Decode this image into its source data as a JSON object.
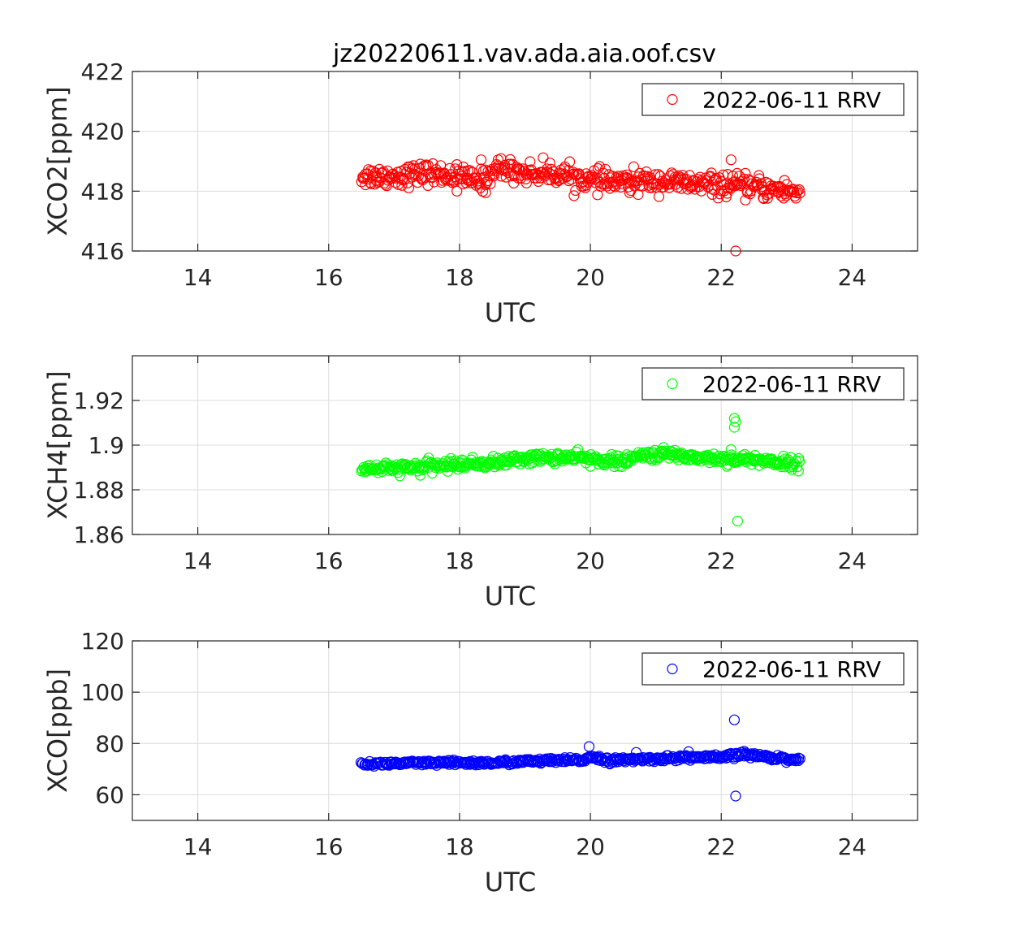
{
  "figure": {
    "title": "jz20220611.vav.ada.aia.oof.csv"
  },
  "chart_data": [
    {
      "type": "scatter",
      "name": "xco2",
      "ylabel": "XCO2[ppm]",
      "xlabel": "UTC",
      "xlim": [
        13,
        25
      ],
      "ylim": [
        416,
        422
      ],
      "xticks": [
        "14",
        "16",
        "18",
        "20",
        "22",
        "24"
      ],
      "yticks": [
        "416",
        "418",
        "420",
        "422"
      ],
      "grid": true,
      "legend_position": "top-right",
      "series": [
        {
          "name": "2022-06-11 RRV",
          "color": "#ff0000",
          "marker": "open-circle",
          "trend": [
            [
              16.5,
              418.5
            ],
            [
              17.0,
              418.5
            ],
            [
              17.5,
              418.6
            ],
            [
              18.0,
              418.5
            ],
            [
              18.3,
              418.3
            ],
            [
              18.6,
              418.8
            ],
            [
              19.0,
              418.6
            ],
            [
              19.5,
              418.6
            ],
            [
              20.0,
              418.35
            ],
            [
              20.5,
              418.3
            ],
            [
              21.0,
              418.35
            ],
            [
              21.5,
              418.25
            ],
            [
              22.0,
              418.2
            ],
            [
              22.5,
              418.15
            ],
            [
              23.2,
              417.95
            ]
          ],
          "spread": 0.18,
          "count": 480,
          "outliers": [
            [
              18.33,
              419.05
            ],
            [
              22.15,
              419.05
            ],
            [
              22.22,
              416.0
            ],
            [
              17.96,
              418.0
            ],
            [
              18.4,
              417.95
            ],
            [
              20.6,
              417.95
            ],
            [
              22.65,
              417.75
            ]
          ]
        }
      ]
    },
    {
      "type": "scatter",
      "name": "xch4",
      "ylabel": "XCH4[ppm]",
      "xlabel": "UTC",
      "xlim": [
        13,
        25
      ],
      "ylim": [
        1.86,
        1.94
      ],
      "xticks": [
        "14",
        "16",
        "18",
        "20",
        "22",
        "24"
      ],
      "yticks": [
        "1.86",
        "1.88",
        "1.9",
        "1.92"
      ],
      "grid": true,
      "legend_position": "top-right",
      "series": [
        {
          "name": "2022-06-11 RRV",
          "color": "#00ff00",
          "marker": "open-circle",
          "trend": [
            [
              16.5,
              1.8895
            ],
            [
              17.0,
              1.8895
            ],
            [
              17.5,
              1.8905
            ],
            [
              18.0,
              1.8915
            ],
            [
              18.5,
              1.892
            ],
            [
              19.0,
              1.894
            ],
            [
              19.5,
              1.8945
            ],
            [
              20.0,
              1.894
            ],
            [
              20.5,
              1.8925
            ],
            [
              20.8,
              1.8955
            ],
            [
              21.2,
              1.896
            ],
            [
              21.6,
              1.8945
            ],
            [
              22.0,
              1.894
            ],
            [
              22.5,
              1.8935
            ],
            [
              23.2,
              1.8915
            ]
          ],
          "spread": 0.0012,
          "count": 480,
          "outliers": [
            [
              22.2,
              1.912
            ],
            [
              22.22,
              1.9105
            ],
            [
              22.2,
              1.908
            ],
            [
              22.25,
              1.866
            ],
            [
              22.15,
              1.898
            ],
            [
              17.4,
              1.8865
            ],
            [
              20.0,
              1.8905
            ],
            [
              22.25,
              1.8925
            ]
          ]
        }
      ]
    },
    {
      "type": "scatter",
      "name": "xco",
      "ylabel": "XCO[ppb]",
      "xlabel": "UTC",
      "xlim": [
        13,
        25
      ],
      "ylim": [
        50,
        120
      ],
      "xticks": [
        "14",
        "16",
        "18",
        "20",
        "22",
        "24"
      ],
      "yticks": [
        "60",
        "80",
        "100",
        "120"
      ],
      "grid": true,
      "legend_position": "top-right",
      "series": [
        {
          "name": "2022-06-11 RRV",
          "color": "#0000ff",
          "marker": "open-circle",
          "trend": [
            [
              16.5,
              72.0
            ],
            [
              17.0,
              72.2
            ],
            [
              17.5,
              72.3
            ],
            [
              18.0,
              72.5
            ],
            [
              18.5,
              72.4
            ],
            [
              19.0,
              73.0
            ],
            [
              19.5,
              73.3
            ],
            [
              19.9,
              73.5
            ],
            [
              20.0,
              75.0
            ],
            [
              20.3,
              73.3
            ],
            [
              20.7,
              73.8
            ],
            [
              21.0,
              74.0
            ],
            [
              21.5,
              74.6
            ],
            [
              22.0,
              74.5
            ],
            [
              22.3,
              75.8
            ],
            [
              22.7,
              74.8
            ],
            [
              23.2,
              73.5
            ]
          ],
          "spread": 0.5,
          "count": 480,
          "outliers": [
            [
              19.98,
              78.8
            ],
            [
              22.2,
              89.2
            ],
            [
              22.22,
              59.5
            ],
            [
              20.7,
              76.5
            ],
            [
              21.5,
              76.8
            ],
            [
              22.35,
              77.0
            ]
          ]
        }
      ]
    }
  ]
}
